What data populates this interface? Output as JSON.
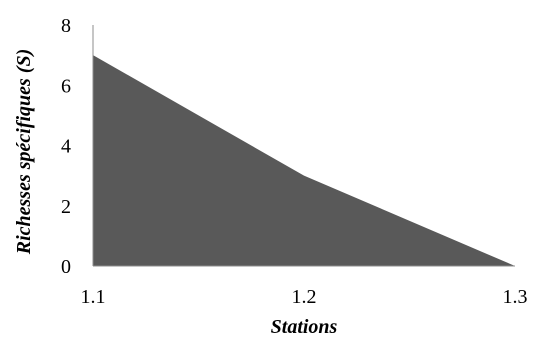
{
  "chart_data": {
    "type": "area",
    "x": [
      "1.1",
      "1.2",
      "1.3"
    ],
    "series": [
      {
        "values": [
          7,
          3,
          0
        ],
        "color": "#595959"
      }
    ],
    "xlabel": "Stations",
    "ylabel": "Richesses spécifiques (S)",
    "ylim": [
      0,
      8
    ],
    "yticks": [
      "0",
      "2",
      "4",
      "6",
      "8"
    ],
    "grid": false,
    "legend": "none"
  }
}
